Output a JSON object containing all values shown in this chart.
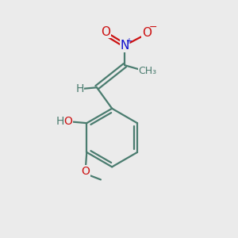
{
  "bg_color": "#ebebeb",
  "bond_color": "#4a7c6f",
  "bond_width": 1.6,
  "atom_colors": {
    "C": "#4a7c6f",
    "H": "#4a7c6f",
    "O": "#cc1111",
    "N": "#1111cc"
  }
}
